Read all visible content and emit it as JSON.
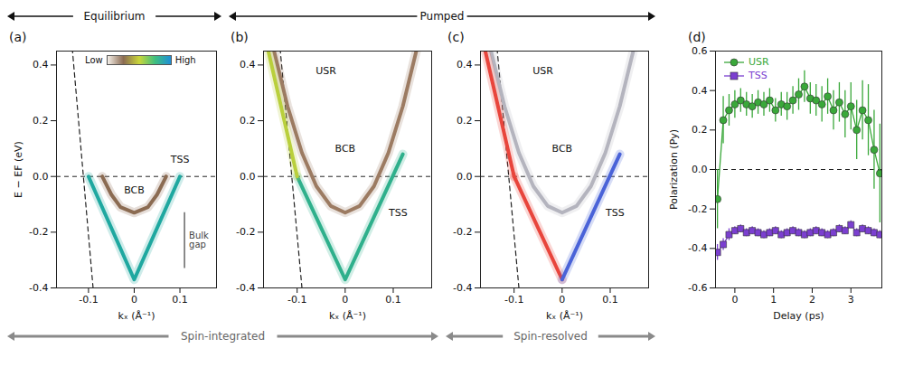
{
  "chart_data": [
    {
      "panel": "(a)",
      "type": "line",
      "xlabel": "kₓ (Å⁻¹)",
      "ylabel": "E − EF (eV)",
      "xlim": [
        -0.17,
        0.18
      ],
      "ylim": [
        -0.4,
        0.45
      ],
      "xticks": [
        -0.1,
        0,
        0.1
      ],
      "yticks": [
        -0.4,
        -0.2,
        {
          "value": 0,
          "label": "0.0"
        },
        0.2,
        0.4
      ],
      "hline": 0,
      "guides": [
        {
          "x": [
            -0.09,
            -0.135
          ],
          "y": [
            -0.4,
            0.45
          ],
          "line_style": "dashed"
        }
      ],
      "series": [
        {
          "name": "BCB",
          "color": "#8b6b52",
          "x": [
            -0.07,
            -0.05,
            -0.03,
            0,
            0.03,
            0.05,
            0.07
          ],
          "y": [
            0,
            -0.065,
            -0.11,
            -0.13,
            -0.11,
            -0.065,
            0
          ]
        },
        {
          "name": "TSS",
          "color": "#1fa8a0",
          "x": [
            -0.1,
            0,
            0.1
          ],
          "y": [
            0,
            -0.37,
            0
          ]
        }
      ],
      "annotations": [
        {
          "text": "BCB",
          "x": 0,
          "y": -0.05
        },
        {
          "text": "TSS",
          "x": 0.1,
          "y": 0.06
        }
      ],
      "bracket": {
        "label": "Bulk gap",
        "x": 0.11,
        "y": [
          -0.33,
          -0.13
        ]
      },
      "colorbar": {
        "labels": [
          "Low",
          "High"
        ]
      }
    },
    {
      "panel": "(b)",
      "type": "line",
      "xlabel": "kₓ (Å⁻¹)",
      "xlim": [
        -0.17,
        0.18
      ],
      "ylim": [
        -0.4,
        0.45
      ],
      "xticks": [
        -0.1,
        0,
        0.1
      ],
      "yticks": [
        -0.4,
        -0.2,
        {
          "value": 0,
          "label": "0.0"
        },
        0.2,
        0.4
      ],
      "hline": 0,
      "guides": [
        {
          "x": [
            -0.09,
            -0.135
          ],
          "y": [
            -0.4,
            0.45
          ],
          "line_style": "dashed"
        }
      ],
      "series": [
        {
          "name": "BCB",
          "color": "#9c7b62",
          "x": [
            -0.148,
            -0.12,
            -0.09,
            -0.06,
            -0.03,
            0,
            0.03,
            0.06,
            0.09,
            0.12,
            0.148
          ],
          "y": [
            0.45,
            0.252,
            0.085,
            -0.035,
            -0.106,
            -0.13,
            -0.106,
            -0.035,
            0.085,
            0.252,
            0.45
          ]
        },
        {
          "name": "TSS",
          "color": "#2fb08c",
          "x": [
            -0.1,
            0,
            0.12
          ],
          "y": [
            0,
            -0.37,
            0.08
          ]
        },
        {
          "name": "USR",
          "color": "#b9cf3c",
          "x": [
            -0.1,
            -0.16
          ],
          "y": [
            0,
            0.45
          ]
        }
      ],
      "annotations": [
        {
          "text": "USR",
          "x": -0.04,
          "y": 0.38
        },
        {
          "text": "BCB",
          "x": 0,
          "y": 0.1
        },
        {
          "text": "TSS",
          "x": 0.11,
          "y": -0.13
        }
      ]
    },
    {
      "panel": "(c)",
      "type": "line",
      "xlabel": "kₓ (Å⁻¹)",
      "xlim": [
        -0.17,
        0.18
      ],
      "ylim": [
        -0.4,
        0.45
      ],
      "xticks": [
        -0.1,
        0,
        0.1
      ],
      "yticks": [
        -0.4,
        -0.2,
        {
          "value": 0,
          "label": "0.0"
        },
        0.2,
        0.4
      ],
      "hline": 0,
      "guides": [
        {
          "x": [
            -0.09,
            -0.135
          ],
          "y": [
            -0.4,
            0.45
          ],
          "line_style": "dashed"
        }
      ],
      "series": [
        {
          "name": "BCB",
          "color": "#b4b4be",
          "x": [
            -0.148,
            -0.12,
            -0.09,
            -0.06,
            -0.03,
            0,
            0.03,
            0.06,
            0.09,
            0.12,
            0.148
          ],
          "y": [
            0.45,
            0.252,
            0.085,
            -0.035,
            -0.106,
            -0.13,
            -0.106,
            -0.035,
            0.085,
            0.252,
            0.45
          ]
        },
        {
          "name": "TSS",
          "color": "#e8453c",
          "x": [
            -0.1,
            0
          ],
          "y": [
            0,
            -0.37
          ]
        },
        {
          "name": "USR",
          "color": "#e8453c",
          "x": [
            -0.1,
            -0.16
          ],
          "y": [
            0,
            0.45
          ]
        },
        {
          "name": "TSS",
          "color": "#4a63d8",
          "x": [
            0,
            0.12
          ],
          "y": [
            -0.37,
            0.08
          ]
        }
      ],
      "annotations": [
        {
          "text": "USR",
          "x": -0.04,
          "y": 0.38
        },
        {
          "text": "BCB",
          "x": 0,
          "y": 0.1
        },
        {
          "text": "TSS",
          "x": 0.11,
          "y": -0.13
        }
      ]
    },
    {
      "panel": "(d)",
      "type": "line",
      "xlabel": "Delay (ps)",
      "ylabel": "Polarization (Py)",
      "xlim": [
        -0.5,
        3.8
      ],
      "ylim": [
        -0.6,
        0.6
      ],
      "xticks": [
        0,
        1,
        2,
        3
      ],
      "yticks": [
        -0.6,
        -0.4,
        -0.2,
        {
          "value": 0,
          "label": "0.0"
        },
        0.2,
        0.4,
        0.6
      ],
      "hline": 0,
      "legend": "top-left",
      "x": [
        -0.45,
        -0.3,
        -0.15,
        0,
        0.15,
        0.3,
        0.45,
        0.6,
        0.75,
        0.9,
        1.05,
        1.2,
        1.35,
        1.5,
        1.65,
        1.8,
        1.95,
        2.1,
        2.25,
        2.4,
        2.55,
        2.7,
        2.85,
        3.0,
        3.15,
        3.3,
        3.45,
        3.6,
        3.75
      ],
      "series": [
        {
          "name": "USR",
          "color": "#3aa83a",
          "marker": "circle",
          "values": [
            -0.15,
            0.25,
            0.3,
            0.33,
            0.35,
            0.33,
            0.32,
            0.34,
            0.33,
            0.35,
            0.3,
            0.33,
            0.32,
            0.35,
            0.38,
            0.42,
            0.36,
            0.35,
            0.33,
            0.37,
            0.3,
            0.34,
            0.28,
            0.32,
            0.2,
            0.3,
            0.25,
            0.1,
            -0.02
          ],
          "errors": [
            0.15,
            0.12,
            0.08,
            0.07,
            0.06,
            0.06,
            0.06,
            0.06,
            0.06,
            0.06,
            0.06,
            0.06,
            0.07,
            0.07,
            0.08,
            0.08,
            0.08,
            0.08,
            0.09,
            0.09,
            0.1,
            0.1,
            0.12,
            0.12,
            0.15,
            0.15,
            0.18,
            0.2,
            0.25
          ]
        },
        {
          "name": "TSS",
          "color": "#7b3fd0",
          "marker": "square",
          "values": [
            -0.42,
            -0.38,
            -0.33,
            -0.31,
            -0.3,
            -0.32,
            -0.31,
            -0.32,
            -0.33,
            -0.32,
            -0.31,
            -0.33,
            -0.32,
            -0.31,
            -0.32,
            -0.33,
            -0.32,
            -0.31,
            -0.32,
            -0.33,
            -0.32,
            -0.3,
            -0.31,
            -0.28,
            -0.32,
            -0.3,
            -0.31,
            -0.32,
            -0.33
          ],
          "errors": [
            0.04,
            0.03,
            0.03,
            0.02,
            0.02,
            0.02,
            0.02,
            0.02,
            0.02,
            0.02,
            0.02,
            0.02,
            0.02,
            0.02,
            0.02,
            0.02,
            0.02,
            0.02,
            0.02,
            0.02,
            0.02,
            0.02,
            0.02,
            0.02,
            0.02,
            0.02,
            0.02,
            0.02,
            0.02
          ]
        }
      ]
    }
  ],
  "groups": {
    "top": [
      {
        "label": "Equilibrium",
        "panels": [
          "(a)"
        ]
      },
      {
        "label": "Pumped",
        "panels": [
          "(b)",
          "(c)"
        ]
      }
    ],
    "bottom": [
      {
        "label": "Spin-integrated",
        "panels": [
          "(a)",
          "(b)"
        ]
      },
      {
        "label": "Spin-resolved",
        "panels": [
          "(c)"
        ]
      }
    ]
  }
}
